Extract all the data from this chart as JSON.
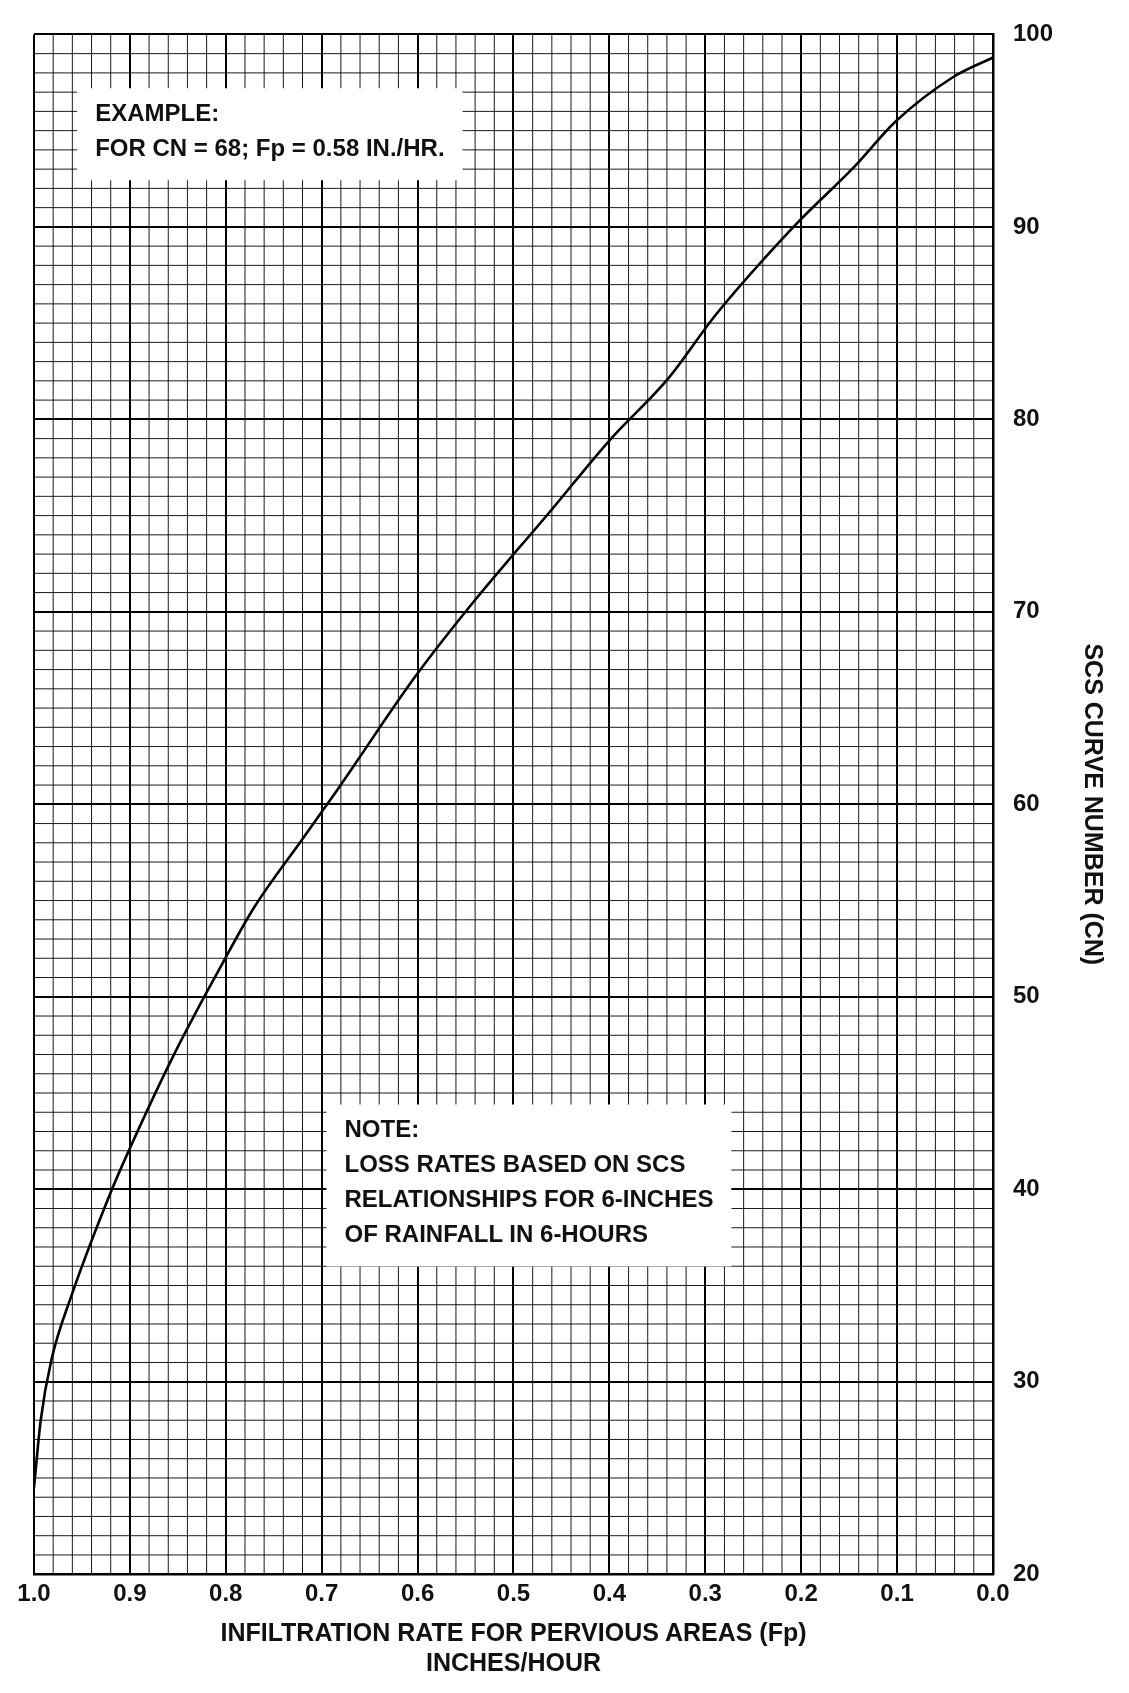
{
  "chart_data": {
    "type": "line",
    "xlabel": "INFILTRATION RATE FOR PERVIOUS AREAS (Fp)\nINCHES/HOUR",
    "ylabel": "SCS CURVE NUMBER (CN)",
    "x": [
      1.0,
      0.993,
      0.982,
      0.96,
      0.922,
      0.903,
      0.853,
      0.806,
      0.771,
      0.72,
      0.683,
      0.603,
      0.542,
      0.462,
      0.4,
      0.339,
      0.288,
      0.206,
      0.145,
      0.101,
      0.041,
      0.0
    ],
    "series": [
      {
        "color": "#000000",
        "values": [
          24.5,
          28,
          31.1,
          34.6,
          39.6,
          41.8,
          47.1,
          51.5,
          54.6,
          58.2,
          60.8,
          66.6,
          70.5,
          75.2,
          78.9,
          82.1,
          85.5,
          90.1,
          93.1,
          95.5,
          97.8,
          98.8
        ]
      }
    ],
    "xlim": [
      1.0,
      0.0
    ],
    "xticks": [
      {
        "value": 1.0,
        "label": "1.0"
      },
      0.9,
      0.8,
      0.7,
      0.6,
      0.5,
      0.4,
      0.3,
      0.2,
      0.1,
      {
        "value": 0.0,
        "label": "0.0"
      }
    ],
    "ylim": [
      20,
      100
    ],
    "yticks": [
      20,
      30,
      40,
      50,
      60,
      70,
      80,
      90,
      100
    ],
    "grid": true,
    "legend": false,
    "marker": "none",
    "line_style": "solid",
    "annotations": [
      "EXAMPLE:\nFOR CN = 68; Fp = 0.58 IN./HR.",
      "NOTE:\nLOSS RATES BASED ON SCS\nRELATIONSHIPS FOR 6-INCHES\nOF RAINFALL IN 6-HOURS"
    ]
  }
}
